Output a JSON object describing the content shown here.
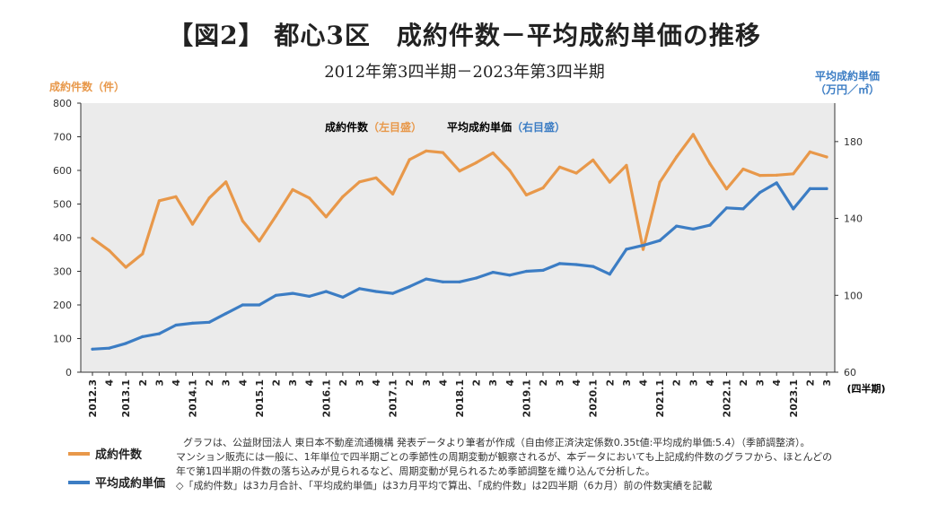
{
  "title": "【図2】 都心3区　成約件数－平均成約単価の推移",
  "subtitle": "2012年第3四半期－2023年第3四半期",
  "colors": {
    "count": "#E8984A",
    "price": "#3C7DC4",
    "plot_bg": "#EBEBEB"
  },
  "chart_data": {
    "type": "line",
    "left_axis_label": "成約件数（件）",
    "right_axis_label_line1": "平均成約単価",
    "right_axis_label_line2": "（万円／㎡）",
    "x_unit_label": "(四半期)",
    "inner_legend": {
      "count_name": "成約件数",
      "count_note": "（左目盛）",
      "price_name": "平均成約単価",
      "price_note": "（右目盛）"
    },
    "ylim_left": [
      0,
      800
    ],
    "yticks_left": [
      "0",
      "100",
      "200",
      "300",
      "400",
      "500",
      "600",
      "700",
      "800"
    ],
    "ylim_right": [
      60,
      200
    ],
    "yticks_right": [
      "60",
      "100",
      "140",
      "180"
    ],
    "x_labels": [
      "2012.3",
      "4",
      "2013.1",
      "2",
      "3",
      "4",
      "2014.1",
      "2",
      "3",
      "4",
      "2015.1",
      "2",
      "3",
      "4",
      "2016.1",
      "2",
      "3",
      "4",
      "2017.1",
      "2",
      "3",
      "4",
      "2018.1",
      "2",
      "3",
      "4",
      "2019.1",
      "2",
      "3",
      "4",
      "2020.1",
      "2",
      "3",
      "4",
      "2021.1",
      "2",
      "3",
      "4",
      "2022.1",
      "2",
      "3",
      "4",
      "2023.1",
      "2",
      "3"
    ],
    "series": [
      {
        "name": "成約件数",
        "values": [
          398,
          362,
          312,
          352,
          510,
          522,
          440,
          518,
          566,
          450,
          390,
          465,
          543,
          518,
          462,
          522,
          566,
          578,
          530,
          632,
          658,
          653,
          598,
          623,
          652,
          600,
          527,
          548,
          610,
          592,
          631,
          565,
          615,
          365,
          565,
          640,
          707,
          620,
          545,
          604,
          585,
          586,
          590,
          655,
          640
        ]
      },
      {
        "name": "平均成約単価",
        "values": [
          72,
          72.5,
          75,
          78.5,
          80,
          84.5,
          85.5,
          86,
          90.5,
          95,
          95,
          100,
          101,
          99.5,
          102,
          99,
          103.5,
          102,
          101,
          104.5,
          108.5,
          107,
          107,
          109,
          112,
          110.5,
          112.5,
          113,
          116.5,
          116,
          115,
          111,
          124,
          126,
          128.5,
          136,
          134.5,
          136.5,
          145.5,
          145,
          153.5,
          158.5,
          145,
          155.5,
          155.5
        ]
      }
    ]
  },
  "legend": {
    "count": "成約件数",
    "price": "平均成約単価"
  },
  "footnote": {
    "line1": "グラフは、公益財団法人 東日本不動産流通機構 発表データより筆者が作成（自由修正済決定係数0.35t値:平均成約単価:5.4）（季節調整済）。",
    "line2": "マンション販売には一般に、1年単位で四半期ごとの季節性の周期変動が観察されるが、本データにおいても上記成約件数のグラフから、ほとんどの",
    "line3": "年で第1四半期の件数の落ち込みが見られるなど、周期変動が見られるため季節調整を織り込んで分析した。",
    "line4": "◇「成約件数」は3カ月合計、「平均成約単価」は3カ月平均で算出、「成約件数」は2四半期（6カ月）前の件数実績を記載"
  }
}
